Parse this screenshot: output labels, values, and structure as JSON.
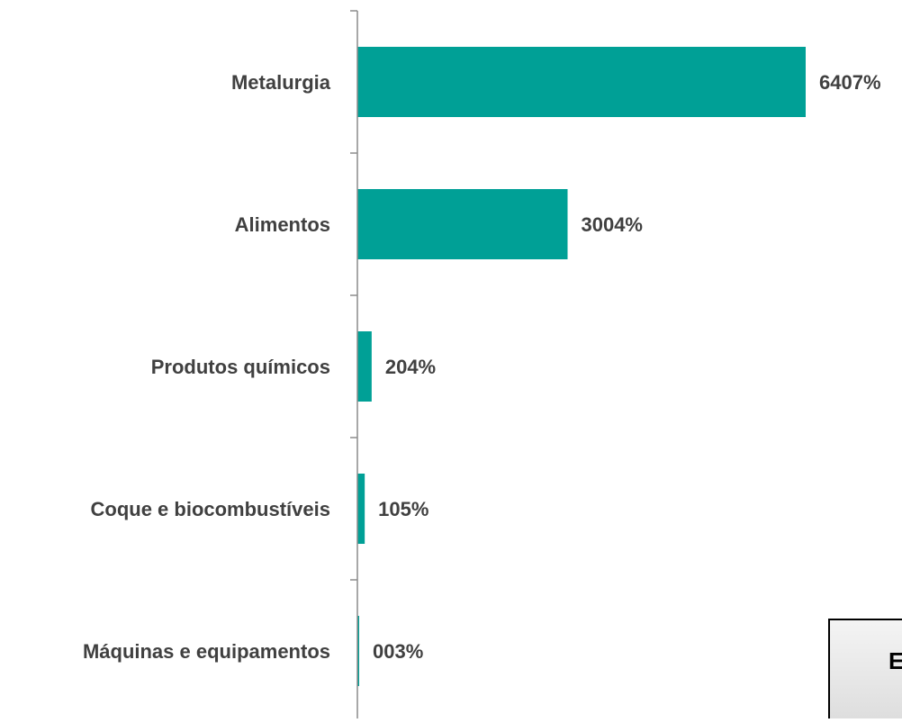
{
  "chart_data": {
    "type": "bar",
    "orientation": "horizontal",
    "categories": [
      "Metalurgia",
      "Alimentos",
      "Produtos químicos",
      "Coque e biocombustíveis",
      "Máquinas e equipamentos"
    ],
    "values": [
      6407,
      3004,
      204,
      105,
      3
    ],
    "value_labels": [
      "6407%",
      "3004%",
      "204%",
      "105%",
      "003%"
    ],
    "bar_color": "#00a096",
    "title": "",
    "xlabel": "",
    "ylabel": "",
    "grid": false,
    "legend": "none"
  },
  "overlay_box": {
    "text": "E"
  }
}
